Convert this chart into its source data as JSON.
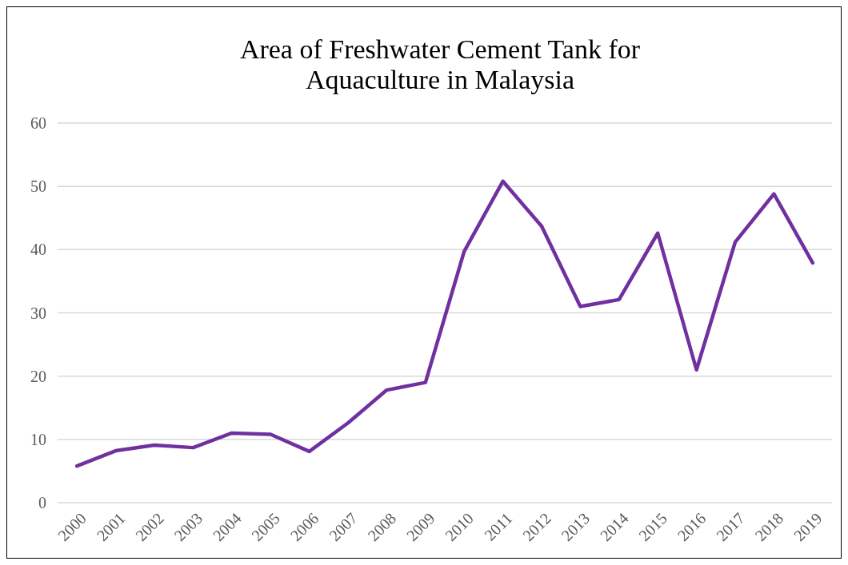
{
  "chart_data": {
    "type": "line",
    "title": "Area of Freshwater Cement Tank for Aquaculture in Malaysia",
    "categories": [
      "2000",
      "2001",
      "2002",
      "2003",
      "2004",
      "2005",
      "2006",
      "2007",
      "2008",
      "2009",
      "2010",
      "2011",
      "2012",
      "2013",
      "2014",
      "2015",
      "2016",
      "2017",
      "2018",
      "2019"
    ],
    "series": [
      {
        "color": "#7030a0",
        "values": [
          5.8,
          8.2,
          9.1,
          8.7,
          11.0,
          10.8,
          8.1,
          12.6,
          17.8,
          19.0,
          39.7,
          50.8,
          43.7,
          31.0,
          32.1,
          42.6,
          21.0,
          41.2,
          48.8,
          37.9
        ]
      }
    ],
    "ylim": [
      0,
      60
    ],
    "yticks": [
      0,
      10,
      20,
      30,
      40,
      50,
      60
    ],
    "grid": "y",
    "marker": "none",
    "line_style": "solid"
  }
}
